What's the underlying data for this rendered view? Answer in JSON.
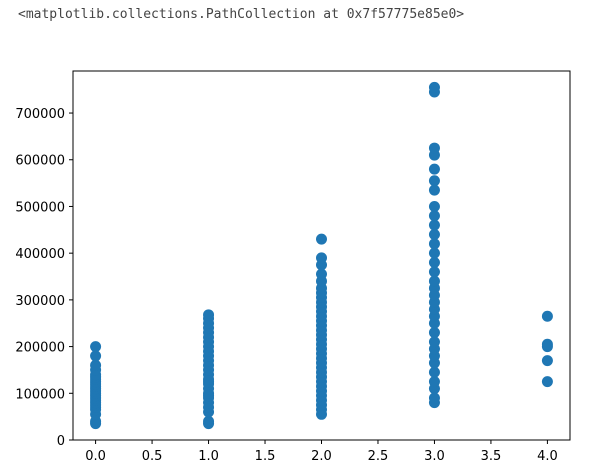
{
  "output_text": "<matplotlib.collections.PathCollection at 0x7f57775e85e0>",
  "chart_data": {
    "type": "scatter",
    "color": "#1f77b4",
    "x": [
      0,
      0,
      0,
      0,
      0,
      0,
      0,
      0,
      0,
      0,
      0,
      0,
      0,
      0,
      0,
      0,
      0,
      0,
      0,
      0,
      0,
      0,
      0,
      1,
      1,
      1,
      1,
      1,
      1,
      1,
      1,
      1,
      1,
      1,
      1,
      1,
      1,
      1,
      1,
      1,
      1,
      1,
      1,
      1,
      1,
      1,
      1,
      1,
      1,
      2,
      2,
      2,
      2,
      2,
      2,
      2,
      2,
      2,
      2,
      2,
      2,
      2,
      2,
      2,
      2,
      2,
      2,
      2,
      2,
      2,
      2,
      2,
      2,
      2,
      2,
      2,
      2,
      2,
      2,
      2,
      2,
      2,
      3,
      3,
      3,
      3,
      3,
      3,
      3,
      3,
      3,
      3,
      3,
      3,
      3,
      3,
      3,
      3,
      3,
      3,
      3,
      3,
      3,
      3,
      3,
      3,
      3,
      3,
      3,
      3,
      3,
      3,
      3,
      3,
      4,
      4,
      4,
      4,
      4
    ],
    "values": [
      35000,
      40000,
      55000,
      65000,
      70000,
      75000,
      80000,
      85000,
      90000,
      95000,
      100000,
      105000,
      110000,
      115000,
      120000,
      125000,
      130000,
      135000,
      140000,
      150000,
      160000,
      180000,
      200000,
      35000,
      40000,
      60000,
      70000,
      80000,
      90000,
      95000,
      100000,
      110000,
      120000,
      125000,
      130000,
      140000,
      150000,
      160000,
      170000,
      180000,
      190000,
      200000,
      210000,
      220000,
      230000,
      240000,
      250000,
      260000,
      268000,
      55000,
      65000,
      75000,
      85000,
      95000,
      105000,
      115000,
      125000,
      135000,
      145000,
      155000,
      165000,
      175000,
      185000,
      195000,
      205000,
      215000,
      225000,
      235000,
      245000,
      255000,
      265000,
      275000,
      285000,
      295000,
      305000,
      315000,
      325000,
      340000,
      355000,
      375000,
      390000,
      430000,
      80000,
      90000,
      110000,
      125000,
      145000,
      165000,
      180000,
      195000,
      210000,
      230000,
      250000,
      265000,
      280000,
      295000,
      310000,
      325000,
      340000,
      360000,
      380000,
      400000,
      420000,
      440000,
      460000,
      480000,
      500000,
      535000,
      555000,
      580000,
      610000,
      625000,
      745000,
      755000,
      125000,
      170000,
      200000,
      205000,
      265000
    ],
    "xlim": [
      -0.2,
      4.2
    ],
    "ylim": [
      0,
      790000
    ],
    "xticks": [
      {
        "value": 0,
        "label": "0.0"
      },
      {
        "value": 0.5,
        "label": "0.5"
      },
      {
        "value": 1,
        "label": "1.0"
      },
      {
        "value": 1.5,
        "label": "1.5"
      },
      {
        "value": 2,
        "label": "2.0"
      },
      {
        "value": 2.5,
        "label": "2.5"
      },
      {
        "value": 3,
        "label": "3.0"
      },
      {
        "value": 3.5,
        "label": "3.5"
      },
      {
        "value": 4,
        "label": "4.0"
      }
    ],
    "yticks": [
      0,
      100000,
      200000,
      300000,
      400000,
      500000,
      600000,
      700000
    ],
    "grid": false
  }
}
